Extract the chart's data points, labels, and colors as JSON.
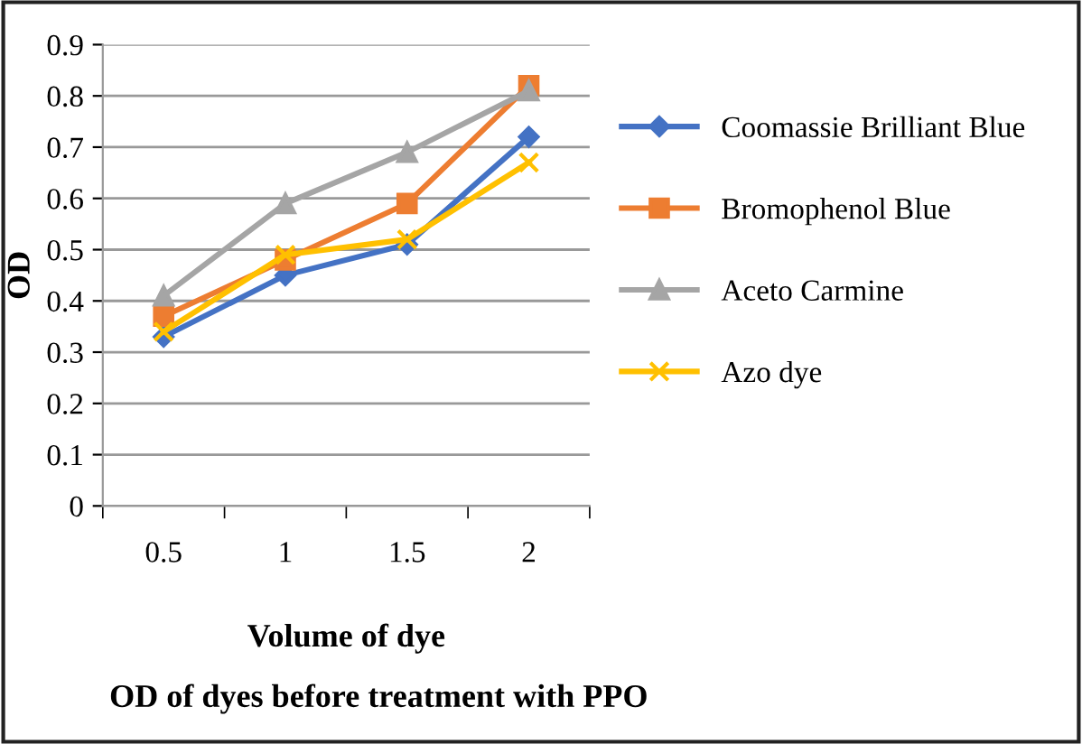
{
  "chart_data": {
    "type": "line",
    "title": "OD of dyes before treatment with PPO",
    "xlabel": "Volume of dye",
    "ylabel": "OD",
    "categories": [
      "0.5",
      "1",
      "1.5",
      "2"
    ],
    "series": [
      {
        "name": "Coomassie Brilliant Blue",
        "color": "#4472c4",
        "marker": "diamond",
        "values": [
          0.33,
          0.45,
          0.51,
          0.72
        ]
      },
      {
        "name": "Bromophenol Blue",
        "color": "#ed7d31",
        "marker": "square",
        "values": [
          0.37,
          0.48,
          0.59,
          0.82
        ]
      },
      {
        "name": "Aceto Carmine",
        "color": "#a5a5a5",
        "marker": "triangle",
        "values": [
          0.41,
          0.59,
          0.69,
          0.81
        ]
      },
      {
        "name": "Azo dye",
        "color": "#ffc000",
        "marker": "cross",
        "values": [
          0.34,
          0.49,
          0.52,
          0.67
        ]
      }
    ],
    "ylim": [
      0,
      0.9
    ],
    "yticks": [
      0,
      0.1,
      0.2,
      0.3,
      0.4,
      0.5,
      0.6,
      0.7,
      0.8,
      0.9
    ],
    "grid": "y",
    "legend": "right",
    "line_style": "solid"
  }
}
